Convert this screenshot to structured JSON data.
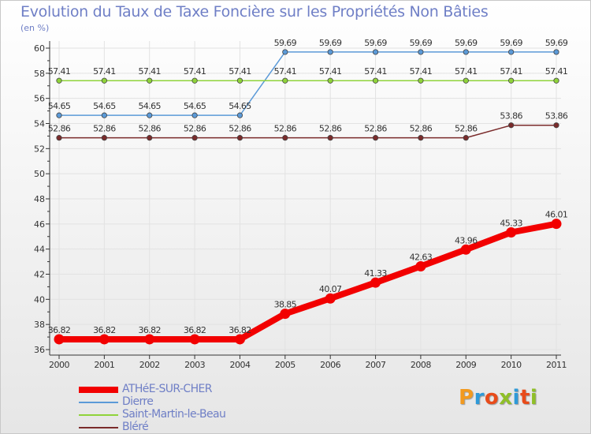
{
  "title": "Evolution du Taux de Taxe Foncière sur les Propriétés Non Bâties",
  "unit_label": "(en %)",
  "logo": {
    "text": "Proxiti",
    "colors": [
      "#f29a1f",
      "#2f9ad8",
      "#e84b1a",
      "#8fbf28",
      "#2f9ad8",
      "#e84b1a",
      "#8fbf28"
    ]
  },
  "chart_data": {
    "type": "line",
    "title": "Evolution du Taux de Taxe Foncière sur les Propriétés Non Bâties",
    "ylabel": "(en %)",
    "xlabel": "",
    "ylim": [
      36,
      60
    ],
    "yticks": [
      36,
      38,
      40,
      42,
      44,
      46,
      48,
      50,
      52,
      54,
      56,
      58,
      60
    ],
    "x": [
      "2000",
      "2001",
      "2002",
      "2003",
      "2004",
      "2005",
      "2006",
      "2007",
      "2008",
      "2009",
      "2010",
      "2011"
    ],
    "legend_position": "bottom-left",
    "series": [
      {
        "name": "ATHéE-SUR-CHER",
        "color": "#f20000",
        "emphasis": true,
        "values": [
          36.82,
          36.82,
          36.82,
          36.82,
          36.82,
          38.85,
          40.07,
          41.33,
          42.63,
          43.96,
          45.33,
          46.01
        ],
        "labels": [
          "36.82",
          "36.82",
          "36.82",
          "36.82",
          "36.82",
          "38.85",
          "40.07",
          "41.33",
          "42.63",
          "43.96",
          "45.33",
          "46.01"
        ]
      },
      {
        "name": "Dierre",
        "color": "#5b9ad8",
        "emphasis": false,
        "values": [
          54.65,
          54.65,
          54.65,
          54.65,
          54.65,
          59.69,
          59.69,
          59.69,
          59.69,
          59.69,
          59.69,
          59.69
        ],
        "labels": [
          "54.65",
          "54.65",
          "54.65",
          "54.65",
          "54.65",
          "59.69",
          "59.69",
          "59.69",
          "59.69",
          "59.69",
          "59.69",
          "59.69"
        ]
      },
      {
        "name": "Saint-Martin-le-Beau",
        "color": "#8fd33a",
        "emphasis": false,
        "values": [
          57.41,
          57.41,
          57.41,
          57.41,
          57.41,
          57.41,
          57.41,
          57.41,
          57.41,
          57.41,
          57.41,
          57.41
        ],
        "labels": [
          "57.41",
          "57.41",
          "57.41",
          "57.41",
          "57.41",
          "57.41",
          "57.41",
          "57.41",
          "57.41",
          "57.41",
          "57.41",
          "57.41"
        ]
      },
      {
        "name": "Bléré",
        "color": "#7a2b2b",
        "emphasis": false,
        "values": [
          52.86,
          52.86,
          52.86,
          52.86,
          52.86,
          52.86,
          52.86,
          52.86,
          52.86,
          52.86,
          53.86,
          53.86
        ],
        "labels": [
          "52.86",
          "52.86",
          "52.86",
          "52.86",
          "52.86",
          "52.86",
          "52.86",
          "52.86",
          "52.86",
          "52.86",
          "53.86",
          "53.86"
        ]
      }
    ]
  }
}
